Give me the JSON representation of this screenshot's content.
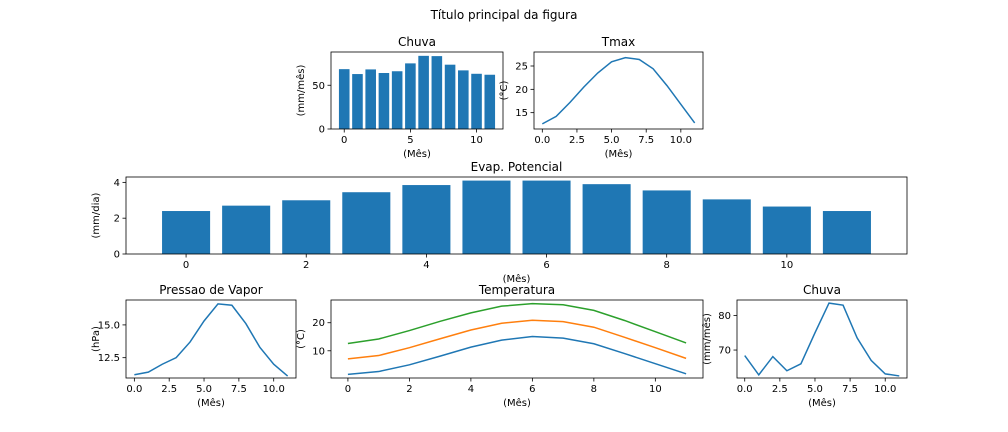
{
  "figure": {
    "suptitle": "Título principal da figura"
  },
  "colors": {
    "blue": "#1f77b4",
    "orange": "#ff7f0e",
    "green": "#2ca02c"
  },
  "chart_data": [
    {
      "id": "chuva-bar",
      "type": "bar",
      "title": "Chuva",
      "xlabel": "(Mês)",
      "ylabel": "(mm/mês)",
      "x": [
        0,
        1,
        2,
        3,
        4,
        5,
        6,
        7,
        8,
        9,
        10,
        11
      ],
      "values": [
        68.4,
        62.8,
        68.1,
        64.0,
        66.0,
        75.0,
        83.6,
        83.3,
        73.5,
        67.0,
        63.1,
        62.0
      ],
      "xlim": [
        -1.0,
        12.0
      ],
      "ylim": [
        0,
        88
      ],
      "xticks": [
        0,
        5,
        10
      ],
      "yticks": [
        0,
        50
      ]
    },
    {
      "id": "tmax",
      "type": "line",
      "title": "Tmax",
      "xlabel": "(Mês)",
      "ylabel": "(°C)",
      "x": [
        0,
        1,
        2,
        3,
        4,
        5,
        6,
        7,
        8,
        9,
        10,
        11
      ],
      "series": [
        {
          "values": [
            12.6,
            14.2,
            17.2,
            20.5,
            23.5,
            25.9,
            26.8,
            26.4,
            24.4,
            20.8,
            16.8,
            12.8
          ],
          "color": "#1f77b4"
        }
      ],
      "xlim": [
        -0.6,
        11.6
      ],
      "ylim": [
        11.5,
        28.0
      ],
      "xticks": [
        0,
        2.5,
        5,
        7.5,
        10
      ],
      "xtick_labels": [
        "0.0",
        "2.5",
        "5.0",
        "7.5",
        "10.0"
      ],
      "yticks": [
        15,
        20,
        25
      ]
    },
    {
      "id": "evap",
      "type": "bar",
      "title": "Evap. Potencial",
      "xlabel": "(Mês)",
      "ylabel": "(mm/dia)",
      "x": [
        0,
        1,
        2,
        3,
        4,
        5,
        6,
        7,
        8,
        9,
        10,
        11
      ],
      "values": [
        2.4,
        2.7,
        3.0,
        3.45,
        3.85,
        4.1,
        4.1,
        3.9,
        3.55,
        3.05,
        2.65,
        2.4
      ],
      "xlim": [
        -1.0,
        12.0
      ],
      "ylim": [
        0,
        4.3
      ],
      "xticks": [
        0,
        2,
        4,
        6,
        8,
        10
      ],
      "yticks": [
        0,
        2,
        4
      ]
    },
    {
      "id": "pressao",
      "type": "line",
      "title": "Pressao de Vapor",
      "xlabel": "(Mês)",
      "ylabel": "(hPa)",
      "x": [
        0,
        1,
        2,
        3,
        4,
        5,
        6,
        7,
        8,
        9,
        10,
        11
      ],
      "series": [
        {
          "values": [
            11.2,
            11.4,
            12.0,
            12.5,
            13.7,
            15.3,
            16.6,
            16.5,
            15.1,
            13.3,
            12.0,
            11.1
          ],
          "color": "#1f77b4"
        }
      ],
      "xlim": [
        -0.6,
        11.6
      ],
      "ylim": [
        10.95,
        16.9
      ],
      "xticks": [
        0,
        2.5,
        5,
        7.5,
        10
      ],
      "xtick_labels": [
        "0.0",
        "2.5",
        "5.0",
        "7.5",
        "10.0"
      ],
      "yticks": [
        12.5,
        15.0
      ],
      "ytick_labels": [
        "12.5",
        "15.0"
      ]
    },
    {
      "id": "temperatura",
      "type": "line",
      "title": "Temperatura",
      "xlabel": "(Mês)",
      "ylabel": "(°C)",
      "x": [
        0,
        1,
        2,
        3,
        4,
        5,
        6,
        7,
        8,
        9,
        10,
        11
      ],
      "series": [
        {
          "values": [
            1.6,
            2.6,
            5.0,
            8.1,
            11.3,
            13.8,
            15.1,
            14.5,
            12.5,
            9.0,
            5.4,
            1.8
          ],
          "color": "#1f77b4"
        },
        {
          "values": [
            7.1,
            8.3,
            11.1,
            14.3,
            17.4,
            19.8,
            20.9,
            20.4,
            18.4,
            14.8,
            11.1,
            7.3
          ],
          "color": "#ff7f0e"
        },
        {
          "values": [
            12.6,
            14.2,
            17.2,
            20.5,
            23.5,
            25.9,
            26.8,
            26.4,
            24.4,
            20.8,
            16.8,
            12.8
          ],
          "color": "#2ca02c"
        }
      ],
      "xlim": [
        -0.55,
        11.55
      ],
      "ylim": [
        0.3,
        28.1
      ],
      "xticks": [
        0,
        2,
        4,
        6,
        8,
        10
      ],
      "yticks": [
        10,
        20
      ]
    },
    {
      "id": "chuva-line",
      "type": "line",
      "title": "Chuva",
      "xlabel": "(Mês)",
      "ylabel": "(mm/mês)",
      "x": [
        0,
        1,
        2,
        3,
        4,
        5,
        6,
        7,
        8,
        9,
        10,
        11
      ],
      "series": [
        {
          "values": [
            68.4,
            62.8,
            68.1,
            64.0,
            66.0,
            75.0,
            83.6,
            83.0,
            73.5,
            67.0,
            63.1,
            62.5
          ],
          "color": "#1f77b4"
        }
      ],
      "xlim": [
        -0.55,
        11.55
      ],
      "ylim": [
        61.9,
        84.5
      ],
      "xticks": [
        0,
        2.5,
        5,
        7.5,
        10
      ],
      "xtick_labels": [
        "0.0",
        "2.5",
        "5.0",
        "7.5",
        "10.0"
      ],
      "yticks": [
        70,
        80
      ]
    }
  ]
}
